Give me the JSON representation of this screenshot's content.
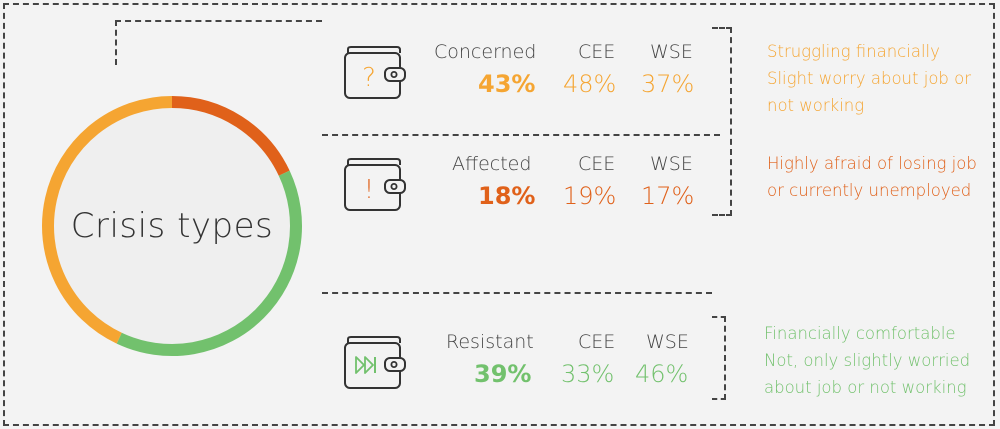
{
  "chart_data": {
    "type": "pie",
    "title": "Crisis types",
    "series": [
      {
        "name": "Concerned",
        "value": 43,
        "color": "#f5a532"
      },
      {
        "name": "Affected",
        "value": 18,
        "color": "#e0611a"
      },
      {
        "name": "Resistant",
        "value": 39,
        "color": "#72c16d"
      }
    ]
  },
  "center_label": "Crisis types",
  "rows": [
    {
      "id": "concerned",
      "icon": "wallet-question-icon",
      "name": "Concerned",
      "value": "43%",
      "cee_label": "CEE",
      "cee": "48%",
      "wse_label": "WSE",
      "wse": "37%",
      "color": "#f5a532",
      "desc": [
        "Struggling financially",
        "Slight worry about job or",
        "not working"
      ]
    },
    {
      "id": "affected",
      "icon": "wallet-exclamation-icon",
      "name": "Affected",
      "value": "18%",
      "cee_label": "CEE",
      "cee": "19%",
      "wse_label": "WSE",
      "wse": "17%",
      "color": "#e0611a",
      "desc": [
        "Highly afraid of losing job",
        "or currently unemployed"
      ]
    },
    {
      "id": "resistant",
      "icon": "wallet-forward-icon",
      "name": "Resistant",
      "value": "39%",
      "cee_label": "CEE",
      "cee": "33%",
      "wse_label": "WSE",
      "wse": "46%",
      "color": "#72c16d",
      "desc": [
        "Financially comfortable",
        "Not, only slightly worried",
        "about job or not working"
      ]
    }
  ]
}
